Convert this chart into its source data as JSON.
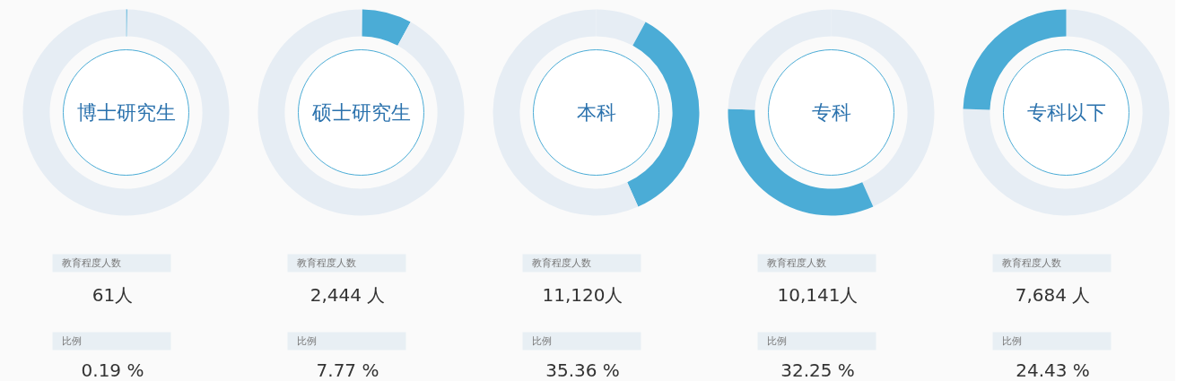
{
  "chart_data": [
    {
      "type": "donut",
      "title": "博士研究生",
      "categories": [
        null,
        null
      ],
      "values": [
        0.19,
        99.81
      ],
      "colors": [
        "#4bacd6",
        "#e6edf4"
      ],
      "annotations": [
        "教育程度人数",
        "61人",
        "比例",
        "0.19 %"
      ]
    },
    {
      "type": "donut",
      "title": "硕士研究生",
      "categories": [
        null,
        null,
        null
      ],
      "values": [
        0.19,
        7.77,
        92.04
      ],
      "colors": [
        "#e6edf4",
        "#4bacd6",
        "#e6edf4"
      ],
      "annotations": [
        "教育程度人数",
        "2,444 人",
        "比例",
        "7.77 %"
      ]
    },
    {
      "type": "donut",
      "title": "本科",
      "categories": [
        null,
        null,
        null
      ],
      "values": [
        7.96,
        35.36,
        56.68
      ],
      "colors": [
        "#e6edf4",
        "#4bacd6",
        "#e6edf4"
      ],
      "annotations": [
        "教育程度人数",
        "11,120人",
        "比例",
        "35.36 %"
      ]
    },
    {
      "type": "donut",
      "title": "专科",
      "categories": [
        null,
        null,
        null
      ],
      "values": [
        43.32,
        32.25,
        24.43
      ],
      "colors": [
        "#e6edf4",
        "#4bacd6",
        "#e6edf4"
      ],
      "annotations": [
        "教育程度人数",
        "10,141人",
        "比例",
        "32.25 %"
      ]
    },
    {
      "type": "donut",
      "title": "专科以下",
      "categories": [
        null,
        null
      ],
      "values": [
        75.57,
        24.43
      ],
      "colors": [
        "#e6edf4",
        "#4bacd6"
      ],
      "annotations": [
        "教育程度人数",
        "7,684 人",
        "比例",
        "24.43 %"
      ]
    }
  ]
}
